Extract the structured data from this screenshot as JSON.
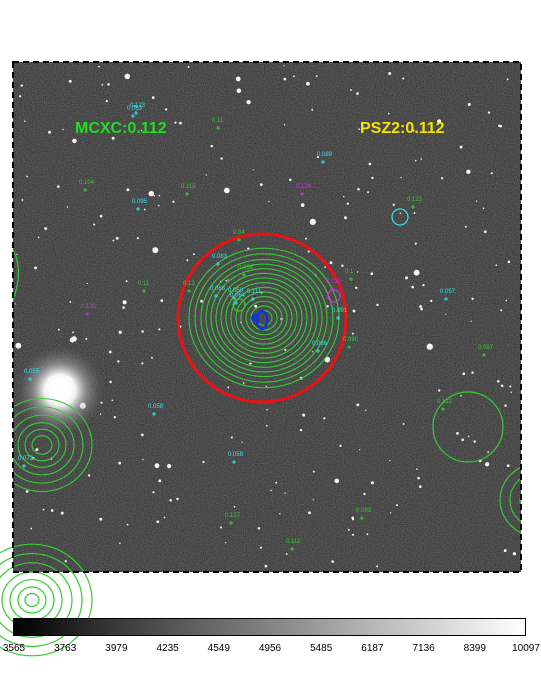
{
  "titles": {
    "mcxc": "MCXC:0.112",
    "psz2": "PSZ2:0.112"
  },
  "colors": {
    "mcxc": "#22dd22",
    "psz2": "#f2e300",
    "cyan": "#35e0e8",
    "green": "#33cc33",
    "magenta": "#cc33cc",
    "red": "#ee1111",
    "blue": "#1133dd"
  },
  "labels": {
    "cyan": [
      "0.083",
      "0.095",
      "0.089",
      "0.063",
      "0.055",
      "0.057",
      "0.068",
      "0.086",
      "0.058",
      "0.064",
      "0.072",
      "0.058",
      "0.091",
      "0.050",
      "0.123",
      "0.111"
    ],
    "green": [
      "0.11",
      "0.104",
      "0.115",
      "0.1",
      "0.04",
      "0.13",
      "0.11",
      "0.056",
      "0.090",
      "0.097",
      "0.127",
      "0.093",
      "0.112",
      "0.122",
      "0.123"
    ],
    "magenta": [
      "0.136",
      "0.138",
      "0.130"
    ]
  },
  "colorbar": {
    "ticks": [
      "3565",
      "3763",
      "3979",
      "4235",
      "4549",
      "4956",
      "5485",
      "6187",
      "7136",
      "8399",
      "10097"
    ]
  }
}
